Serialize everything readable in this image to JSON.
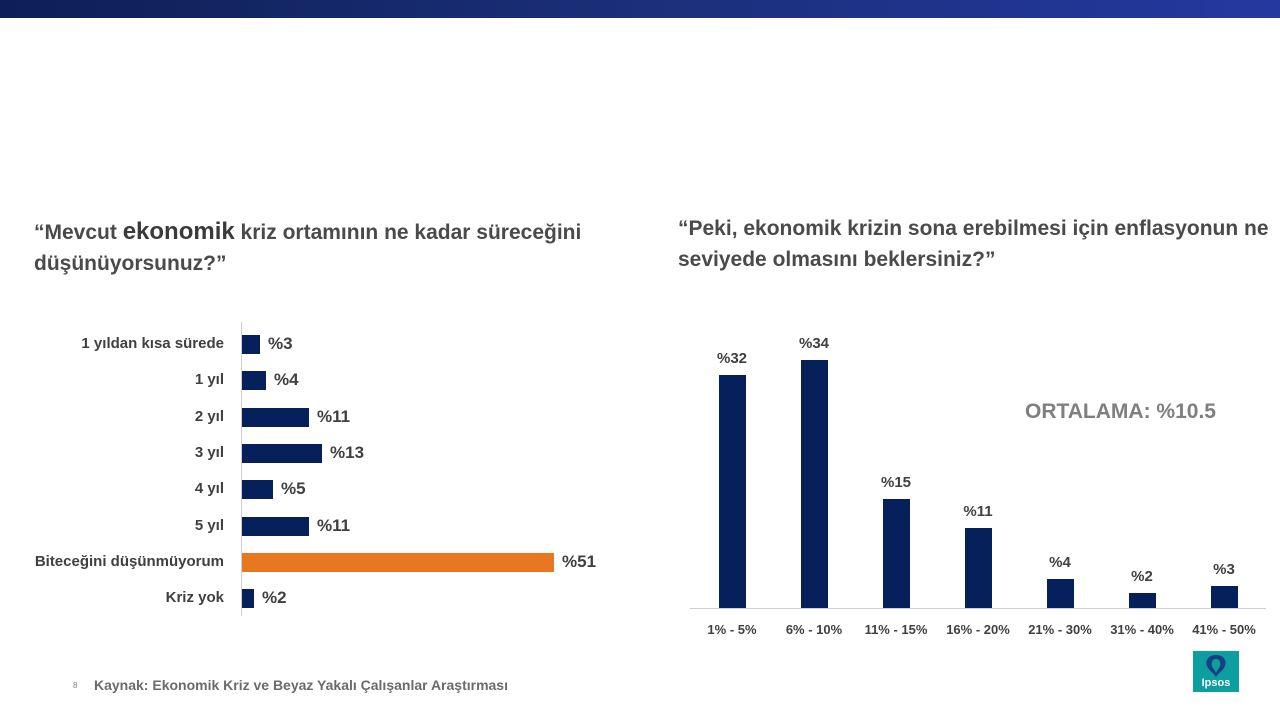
{
  "left_question": {
    "part1": "“Mevcut ",
    "emphasis": "ekonomik",
    "part2": " kriz ortamının ne kadar süreceğini düşünüyorsunuz?”"
  },
  "right_question": "“Peki, ekonomik krizin sona erebilmesi için enflasyonun ne seviyede olmasını beklersiniz?”",
  "average_label": "ORTALAMA: %10.5",
  "footer": {
    "page_number": "8",
    "source": "Kaynak:  Ekonomik Kriz ve Beyaz Yakalı Çalışanlar Araştırması"
  },
  "logo": {
    "text": "Ipsos"
  },
  "colors": {
    "navy": "#06205c",
    "orange": "#e87722",
    "logo_teal": "#0d9ea0"
  },
  "chart_data": [
    {
      "type": "bar",
      "orientation": "horizontal",
      "categories": [
        "1 yıldan kısa sürede",
        "1 yıl",
        "2 yıl",
        "3 yıl",
        "4 yıl",
        "5 yıl",
        "Biteceğini düşünmüyorum",
        "Kriz yok"
      ],
      "values": [
        3,
        4,
        11,
        13,
        5,
        11,
        51,
        2
      ],
      "labels": [
        "%3",
        "%4",
        "%11",
        "%13",
        "%5",
        "%11",
        "%51",
        "%2"
      ],
      "colors": [
        "#06205c",
        "#06205c",
        "#06205c",
        "#06205c",
        "#06205c",
        "#06205c",
        "#e87722",
        "#06205c"
      ],
      "xlim": [
        0,
        51
      ]
    },
    {
      "type": "bar",
      "orientation": "vertical",
      "categories": [
        "1% - 5%",
        "6% - 10%",
        "11% - 15%",
        "16% - 20%",
        "21% - 30%",
        "31% - 40%",
        "41% - 50%"
      ],
      "values": [
        32,
        34,
        15,
        11,
        4,
        2,
        3
      ],
      "labels": [
        "%32",
        "%34",
        "%15",
        "%11",
        "%4",
        "%2",
        "%3"
      ],
      "color": "#06205c",
      "ylim": [
        0,
        34
      ]
    }
  ]
}
